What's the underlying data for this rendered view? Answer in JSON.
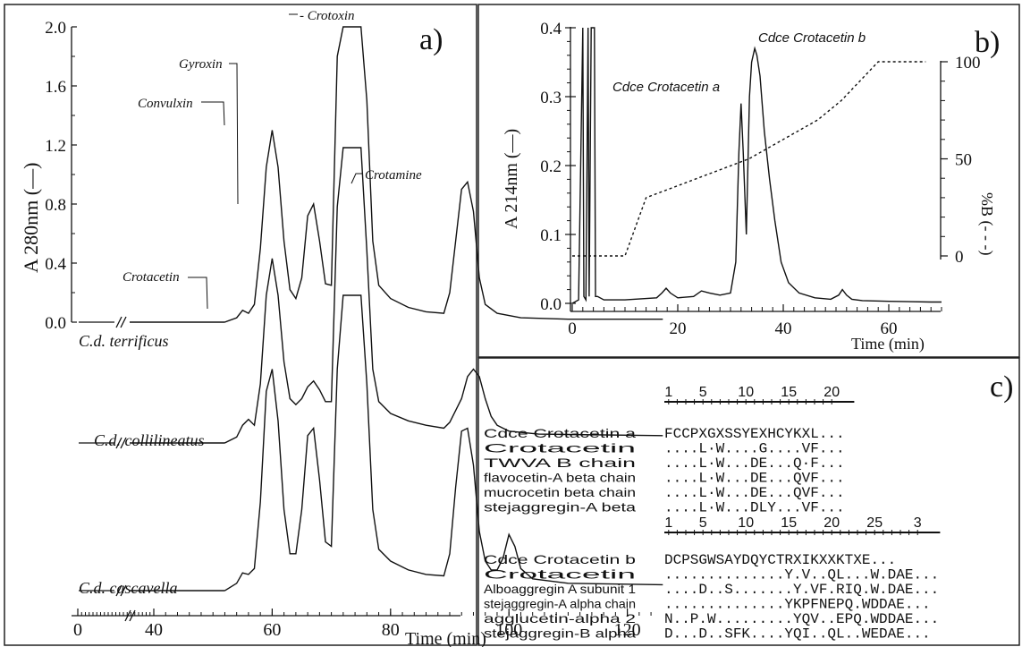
{
  "chart_data": [
    {
      "panel": "a)",
      "type": "line",
      "xlabel": "Time (min)",
      "ylabel": "A 280nm (—)",
      "xticks": [
        0,
        40,
        60,
        80,
        100,
        120
      ],
      "xlim": [
        0,
        125
      ],
      "yticks": [
        "0.0",
        "0.4",
        "0.8",
        "1.2",
        "1.6",
        "2.0"
      ],
      "ylim": [
        0,
        2.0
      ],
      "annotations": [
        "Crotacetin",
        "Convulxin",
        "Gyroxin",
        "Crotoxin",
        "Crotamine"
      ],
      "series": [
        {
          "name": "C.d. terrificus",
          "x": [
            52,
            54,
            55,
            56,
            57,
            58,
            59,
            60,
            61,
            62,
            63,
            64,
            65,
            66,
            67,
            68,
            69,
            70,
            71,
            72,
            73,
            74,
            75,
            76,
            77,
            78,
            80,
            83,
            86,
            89,
            90,
            91,
            92,
            93,
            94,
            95,
            96,
            98,
            102,
            110,
            126
          ],
          "y": [
            0,
            0.03,
            0.08,
            0.06,
            0.12,
            0.5,
            1.05,
            1.3,
            1.05,
            0.55,
            0.22,
            0.16,
            0.3,
            0.72,
            0.8,
            0.55,
            0.26,
            0.25,
            1.8,
            2.0,
            2.0,
            2.0,
            2.0,
            1.5,
            0.55,
            0.25,
            0.16,
            0.1,
            0.07,
            0.06,
            0.2,
            0.55,
            0.9,
            0.95,
            0.75,
            0.3,
            0.12,
            0.06,
            0.03,
            0.02,
            0.02
          ]
        },
        {
          "name": "C.d. collilineatus",
          "x": [
            52,
            54,
            55,
            56,
            57,
            58,
            59,
            60,
            61,
            62,
            63,
            64,
            65,
            66,
            67,
            68,
            69,
            70,
            71,
            72,
            73,
            74,
            75,
            76,
            77,
            78,
            80,
            83,
            86,
            89,
            90,
            92,
            93,
            94,
            95,
            96,
            97,
            98,
            100,
            105,
            126
          ],
          "y": [
            0,
            0.04,
            0.12,
            0.16,
            0.12,
            0.4,
            1.0,
            1.25,
            1.0,
            0.55,
            0.3,
            0.26,
            0.3,
            0.38,
            0.42,
            0.36,
            0.28,
            0.28,
            1.6,
            2.0,
            2.0,
            2.0,
            2.0,
            1.3,
            0.5,
            0.28,
            0.2,
            0.15,
            0.12,
            0.1,
            0.14,
            0.3,
            0.45,
            0.5,
            0.45,
            0.3,
            0.18,
            0.12,
            0.08,
            0.06,
            0.05
          ]
        },
        {
          "name": "C.d. cascavella",
          "x": [
            52,
            54,
            55,
            56,
            57,
            58,
            59,
            60,
            61,
            62,
            63,
            64,
            65,
            66,
            67,
            68,
            69,
            70,
            71,
            72,
            73,
            74,
            75,
            76,
            77,
            78,
            80,
            83,
            86,
            89,
            90,
            91,
            92,
            93,
            94,
            95,
            96,
            97,
            98,
            99,
            100,
            101,
            102,
            104,
            110,
            126
          ],
          "y": [
            0,
            0.05,
            0.12,
            0.11,
            0.15,
            0.6,
            1.35,
            1.5,
            1.15,
            0.55,
            0.25,
            0.25,
            0.55,
            1.05,
            1.1,
            0.75,
            0.33,
            0.3,
            1.5,
            2.0,
            2.0,
            2.0,
            2.0,
            1.4,
            0.55,
            0.28,
            0.2,
            0.14,
            0.11,
            0.1,
            0.25,
            0.7,
            1.08,
            1.1,
            0.85,
            0.4,
            0.2,
            0.14,
            0.14,
            0.22,
            0.38,
            0.3,
            0.15,
            0.08,
            0.05,
            0.04
          ]
        }
      ]
    },
    {
      "panel": "b)",
      "type": "line",
      "xlabel": "Time (min)",
      "ylabel": "A 214nm (—)",
      "ylabel_right": "%B (- - -)",
      "xticks": [
        "0",
        "20",
        "40",
        "60"
      ],
      "xlim": [
        0,
        70
      ],
      "ylim": [
        0,
        0.4
      ],
      "yticks": [
        "0.0",
        "0.1",
        "0.2",
        "0.3",
        "0.4"
      ],
      "ylim_right": [
        0,
        100
      ],
      "yticks_right": [
        "0",
        "50",
        "100"
      ],
      "annotations": [
        "Cdce Crotacetin a",
        "Cdce Crotacetin b"
      ],
      "series": [
        {
          "name": "A214",
          "x": [
            0,
            1.2,
            2.0,
            2.2,
            2.6,
            3.0,
            3.2,
            3.6,
            3.9,
            4.2,
            4.4,
            4.8,
            6,
            10,
            16,
            17,
            17.8,
            18.6,
            20,
            23,
            24.5,
            26,
            28,
            30,
            31,
            31.6,
            32,
            32.4,
            33,
            33.6,
            34,
            34.6,
            35,
            35.6,
            36.4,
            37.4,
            38.4,
            39.6,
            41,
            43,
            46,
            49,
            50.5,
            51.2,
            52,
            53,
            55,
            60,
            68,
            70
          ],
          "y": [
            0.0,
            0.005,
            0.4,
            0.01,
            0.005,
            0.4,
            0.01,
            0.4,
            0.4,
            0.4,
            0.01,
            0.01,
            0.005,
            0.005,
            0.008,
            0.015,
            0.022,
            0.015,
            0.008,
            0.01,
            0.018,
            0.015,
            0.012,
            0.015,
            0.06,
            0.22,
            0.29,
            0.22,
            0.1,
            0.3,
            0.35,
            0.37,
            0.36,
            0.33,
            0.25,
            0.18,
            0.12,
            0.06,
            0.03,
            0.015,
            0.008,
            0.006,
            0.012,
            0.02,
            0.012,
            0.006,
            0.004,
            0.003,
            0.002,
            0.002
          ]
        },
        {
          "name": "%B",
          "x": [
            0,
            10,
            14,
            33.5,
            46.5,
            51,
            58,
            67
          ],
          "y": [
            0,
            0,
            30,
            50,
            70,
            80,
            100,
            100
          ]
        }
      ]
    }
  ],
  "panel_a": {
    "label": "a)",
    "xlabel": "Time (min)",
    "ylabel": "A 280nm (—)",
    "peaks": {
      "crotacetin": "Crotacetin",
      "convulxin": "Convulxin",
      "gyroxin": "Gyroxin",
      "crotoxin": "- Crotoxin",
      "crotamine": "Crotamine"
    },
    "trace_labels": [
      "C.d. terrificus",
      "C.d. collilineatus",
      "C.d. cascavella"
    ]
  },
  "panel_b": {
    "label": "b)",
    "xlabel": "Time (min)",
    "ylabel": "A 214nm (—)",
    "ylabel_right": "%B (- - -)",
    "peak_a": "Cdce Crotacetin a",
    "peak_b": "Cdce Crotacetin b"
  },
  "panel_c": {
    "label": "c)",
    "ruler1": [
      "1",
      "5",
      "10",
      "15",
      "20"
    ],
    "block1": [
      {
        "name": "Cdce Crotacetin a",
        "seq": "FCCPXGXSSYEXHCYKXL..."
      },
      {
        "name": "Crotacetin",
        "seq": "....L·W....G....VF..."
      },
      {
        "name": "TWVA B chain",
        "seq": "....L·W...DE...Q·F..."
      },
      {
        "name": "flavocetin-A beta chain",
        "seq": "....L·W...DE...QVF..."
      },
      {
        "name": "mucrocetin beta chain",
        "seq": "....L·W...DE...QVF..."
      },
      {
        "name": "stejaggregin-A beta",
        "seq": "....L·W...DLY...VF..."
      }
    ],
    "ruler2": [
      "1",
      "5",
      "10",
      "15",
      "20",
      "25",
      "3"
    ],
    "block2": [
      {
        "name": "Cdce Crotacetin b",
        "seq": "DCPSGWSAYDQYCTRXIKXXKTXE..."
      },
      {
        "name": "Crotacetin",
        "seq": "..............Y.V..QL...W.DAE..."
      },
      {
        "name": "Alboaggregin A subunit 1",
        "seq": "....D..S.......Y.VF.RIQ.W.DAE..."
      },
      {
        "name": "stejaggregin-A alpha chain",
        "seq": "..............YKPFNEPQ.WDDAE..."
      },
      {
        "name": "agglucetin-alpha 2",
        "seq": "N..P.W.........YQV..EPQ.WDDAE..."
      },
      {
        "name": "stejaggregin-B alpha",
        "seq": "D...D..SFK....YQI..QL..WEDAE..."
      }
    ]
  }
}
